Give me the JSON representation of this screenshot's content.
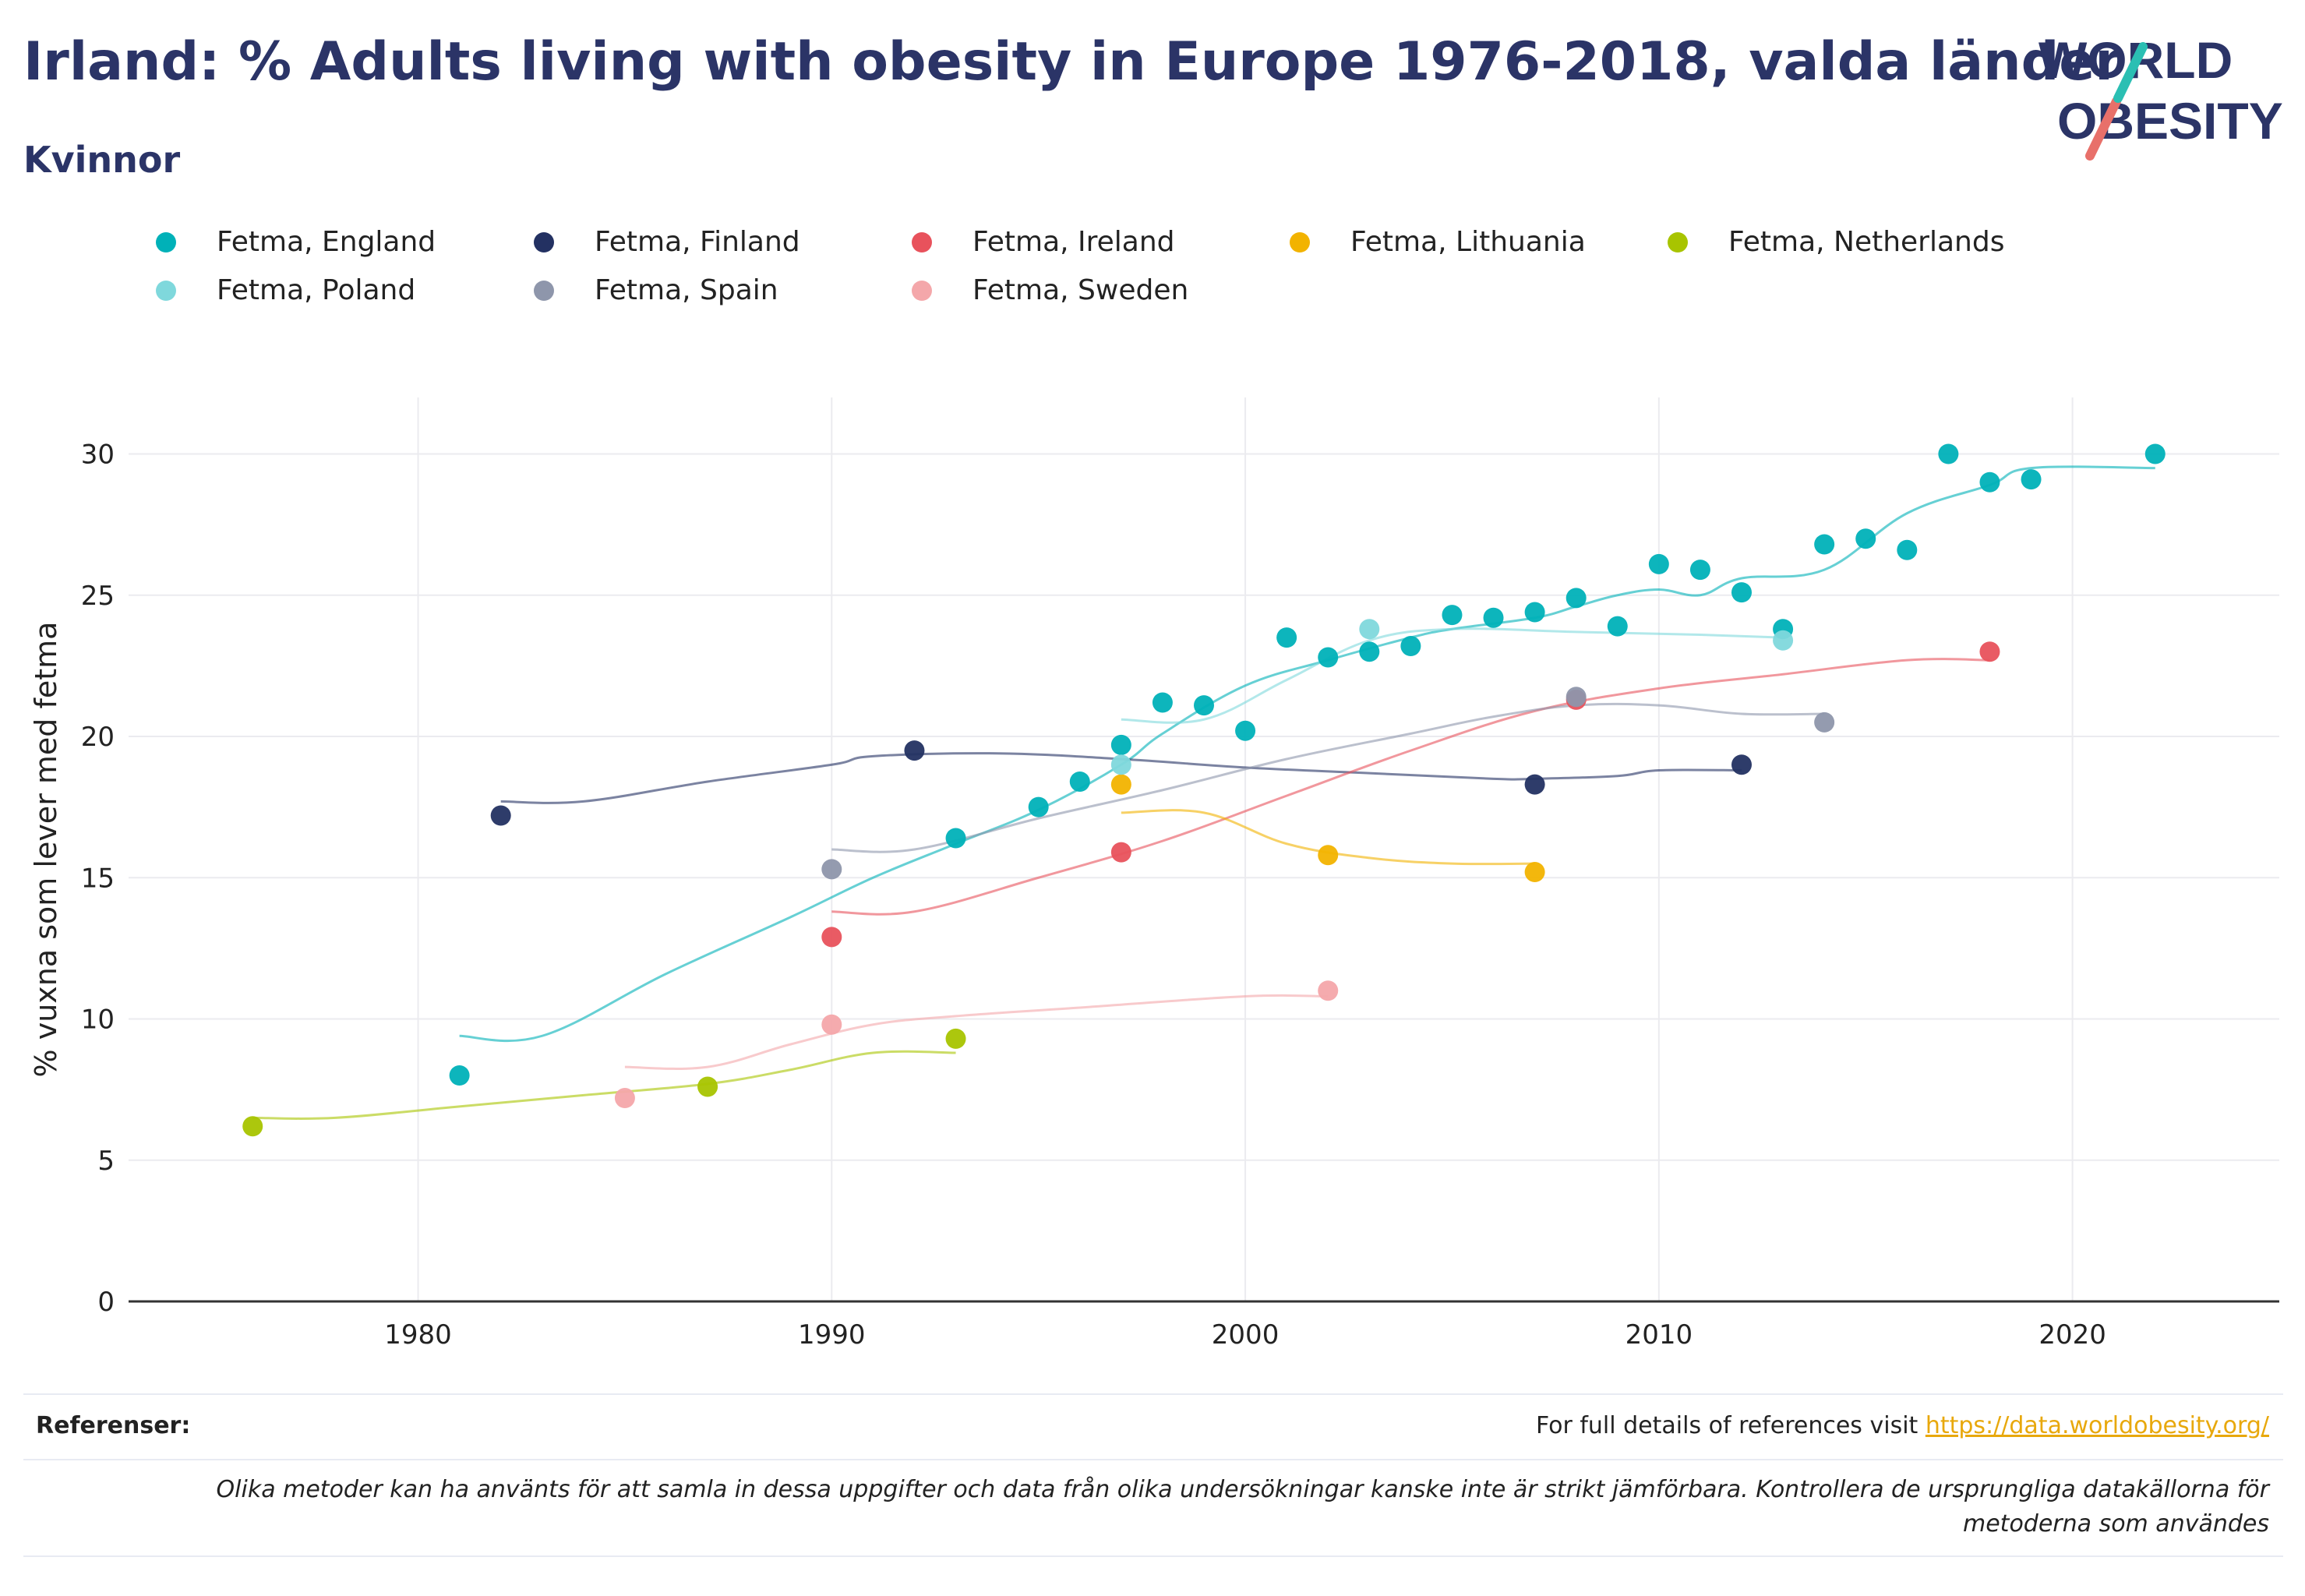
{
  "header": {
    "title": "Irland: % Adults living with obesity in Europe 1976-2018, valda länder",
    "subtitle": "Kvinnor",
    "logo_line1": "WORLD",
    "logo_line2": "OBESITY"
  },
  "footer": {
    "ref_label": "Referenser:",
    "ref_text": "For full details of references visit ",
    "ref_link": "https://data.worldobesity.org/",
    "note": "Olika metoder kan ha använts för att samla in dessa uppgifter och data från olika undersökningar kanske inte är strikt jämförbara. Kontrollera de ursprungliga datakällorna för metoderna som användes"
  },
  "chart_data": {
    "type": "scatter",
    "title": "Irland: % Adults living with obesity in Europe 1976-2018, valda länder",
    "subtitle": "Kvinnor",
    "xlabel": "",
    "ylabel": "% vuxna som lever med fetma",
    "xlim": [
      1973,
      2025
    ],
    "ylim": [
      0,
      32
    ],
    "xticks": [
      1980,
      1990,
      2000,
      2010,
      2020
    ],
    "yticks": [
      0,
      5,
      10,
      15,
      20,
      25,
      30
    ],
    "grid": true,
    "legend_position": "top",
    "series": [
      {
        "name": "Fetma, England",
        "color": "#00b1b8",
        "points": [
          [
            1981,
            8.0
          ],
          [
            1993,
            16.4
          ],
          [
            1995,
            17.5
          ],
          [
            1996,
            18.4
          ],
          [
            1997,
            19.7
          ],
          [
            1998,
            21.2
          ],
          [
            1999,
            21.1
          ],
          [
            2000,
            20.2
          ],
          [
            2001,
            23.5
          ],
          [
            2002,
            22.8
          ],
          [
            2003,
            23.0
          ],
          [
            2004,
            23.2
          ],
          [
            2005,
            24.3
          ],
          [
            2006,
            24.2
          ],
          [
            2007,
            24.4
          ],
          [
            2008,
            24.9
          ],
          [
            2009,
            23.9
          ],
          [
            2010,
            26.1
          ],
          [
            2011,
            25.9
          ],
          [
            2012,
            25.1
          ],
          [
            2013,
            23.8
          ],
          [
            2014,
            26.8
          ],
          [
            2015,
            27.0
          ],
          [
            2016,
            26.6
          ],
          [
            2017,
            30.0
          ],
          [
            2018,
            29.0
          ],
          [
            2019,
            29.1
          ],
          [
            2022,
            30.0
          ]
        ],
        "trend": [
          [
            1981,
            9.4
          ],
          [
            1983,
            9.4
          ],
          [
            1986,
            11.6
          ],
          [
            1989,
            13.6
          ],
          [
            1991,
            15.0
          ],
          [
            1993,
            16.2
          ],
          [
            1995,
            17.4
          ],
          [
            1997,
            19.0
          ],
          [
            1998,
            20.1
          ],
          [
            2000,
            21.8
          ],
          [
            2002,
            22.7
          ],
          [
            2004,
            23.5
          ],
          [
            2005,
            23.8
          ],
          [
            2007,
            24.2
          ],
          [
            2008,
            24.6
          ],
          [
            2009,
            25.0
          ],
          [
            2010,
            25.2
          ],
          [
            2011,
            25.0
          ],
          [
            2012,
            25.6
          ],
          [
            2014,
            25.9
          ],
          [
            2016,
            27.9
          ],
          [
            2018,
            28.9
          ],
          [
            2019,
            29.5
          ],
          [
            2022,
            29.5
          ]
        ]
      },
      {
        "name": "Fetma, Finland",
        "color": "#233162",
        "points": [
          [
            1982,
            17.2
          ],
          [
            1992,
            19.5
          ],
          [
            2007,
            18.3
          ],
          [
            2012,
            19.0
          ]
        ],
        "trend": [
          [
            1982,
            17.7
          ],
          [
            1984,
            17.7
          ],
          [
            1987,
            18.4
          ],
          [
            1990,
            19.0
          ],
          [
            1991,
            19.3
          ],
          [
            1994,
            19.4
          ],
          [
            1997,
            19.2
          ],
          [
            2000,
            18.9
          ],
          [
            2003,
            18.7
          ],
          [
            2006,
            18.5
          ],
          [
            2007,
            18.5
          ],
          [
            2009,
            18.6
          ],
          [
            2010,
            18.8
          ],
          [
            2012,
            18.8
          ]
        ]
      },
      {
        "name": "Fetma, Ireland",
        "color": "#e8525c",
        "points": [
          [
            1990,
            12.9
          ],
          [
            1997,
            15.9
          ],
          [
            2008,
            21.3
          ],
          [
            2018,
            23.0
          ]
        ],
        "trend": [
          [
            1990,
            13.8
          ],
          [
            1992,
            13.8
          ],
          [
            1995,
            15.0
          ],
          [
            1998,
            16.3
          ],
          [
            2001,
            17.9
          ],
          [
            2004,
            19.5
          ],
          [
            2007,
            20.9
          ],
          [
            2010,
            21.7
          ],
          [
            2013,
            22.2
          ],
          [
            2016,
            22.7
          ],
          [
            2018,
            22.7
          ]
        ]
      },
      {
        "name": "Fetma, Lithuania",
        "color": "#f2b300",
        "points": [
          [
            1997,
            18.3
          ],
          [
            2002,
            15.8
          ],
          [
            2007,
            15.2
          ]
        ],
        "trend": [
          [
            1997,
            17.3
          ],
          [
            1999,
            17.3
          ],
          [
            2001,
            16.2
          ],
          [
            2003,
            15.7
          ],
          [
            2005,
            15.5
          ],
          [
            2007,
            15.5
          ]
        ]
      },
      {
        "name": "Fetma, Netherlands",
        "color": "#a8c400",
        "points": [
          [
            1976,
            6.2
          ],
          [
            1987,
            7.6
          ],
          [
            1993,
            9.3
          ]
        ],
        "trend": [
          [
            1976,
            6.5
          ],
          [
            1978,
            6.5
          ],
          [
            1981,
            6.9
          ],
          [
            1984,
            7.3
          ],
          [
            1987,
            7.7
          ],
          [
            1989,
            8.2
          ],
          [
            1991,
            8.8
          ],
          [
            1993,
            8.8
          ]
        ]
      },
      {
        "name": "Fetma, Poland",
        "color": "#7fd8dc",
        "points": [
          [
            1997,
            19.0
          ],
          [
            2003,
            23.8
          ],
          [
            2013,
            23.4
          ]
        ],
        "trend": [
          [
            1997,
            20.6
          ],
          [
            1999,
            20.6
          ],
          [
            2001,
            22.0
          ],
          [
            2003,
            23.4
          ],
          [
            2005,
            23.8
          ],
          [
            2008,
            23.7
          ],
          [
            2011,
            23.6
          ],
          [
            2013,
            23.5
          ]
        ]
      },
      {
        "name": "Fetma, Spain",
        "color": "#8e96ab",
        "points": [
          [
            1990,
            15.3
          ],
          [
            2008,
            21.4
          ],
          [
            2014,
            20.5
          ]
        ],
        "trend": [
          [
            1990,
            16.0
          ],
          [
            1992,
            16.0
          ],
          [
            1995,
            17.1
          ],
          [
            1998,
            18.1
          ],
          [
            2001,
            19.2
          ],
          [
            2004,
            20.1
          ],
          [
            2006,
            20.7
          ],
          [
            2008,
            21.1
          ],
          [
            2010,
            21.1
          ],
          [
            2012,
            20.8
          ],
          [
            2014,
            20.8
          ]
        ]
      },
      {
        "name": "Fetma, Sweden",
        "color": "#f4a7aa",
        "points": [
          [
            1985,
            7.2
          ],
          [
            1990,
            9.8
          ],
          [
            2002,
            11.0
          ]
        ],
        "trend": [
          [
            1985,
            8.3
          ],
          [
            1987,
            8.3
          ],
          [
            1989,
            9.1
          ],
          [
            1991,
            9.8
          ],
          [
            1993,
            10.1
          ],
          [
            1996,
            10.4
          ],
          [
            2000,
            10.8
          ],
          [
            2002,
            10.8
          ]
        ]
      }
    ]
  }
}
